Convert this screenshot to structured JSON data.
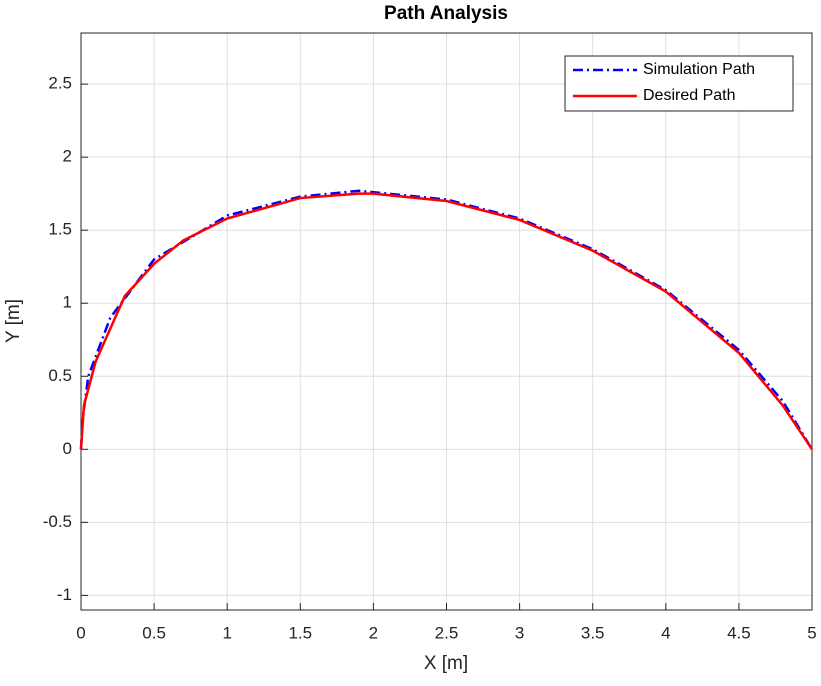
{
  "chart_data": {
    "type": "line",
    "title": "Path Analysis",
    "xlabel": "X [m]",
    "ylabel": "Y [m]",
    "xlim": [
      0,
      5
    ],
    "ylim": [
      -1.1,
      2.85
    ],
    "xticks": [
      0,
      0.5,
      1,
      1.5,
      2,
      2.5,
      3,
      3.5,
      4,
      4.5,
      5
    ],
    "yticks": [
      -1,
      -0.5,
      0,
      0.5,
      1,
      1.5,
      2,
      2.5
    ],
    "grid": true,
    "legend": "northeast",
    "series": [
      {
        "name": "Simulation Path",
        "color": "#0000ff",
        "style": "dashdot",
        "x": [
          0,
          0.01,
          0.05,
          0.2,
          0.5,
          1,
          1.5,
          1.9,
          2.5,
          3,
          3.5,
          4,
          4.5,
          4.8,
          5
        ],
        "values": [
          0,
          0.2,
          0.5,
          0.9,
          1.3,
          1.6,
          1.73,
          1.77,
          1.71,
          1.58,
          1.37,
          1.09,
          0.68,
          0.33,
          0
        ]
      },
      {
        "name": "Desired Path",
        "color": "#ff0000",
        "style": "solid",
        "x": [
          0,
          0.02,
          0.1,
          0.3,
          0.5,
          0.7,
          1,
          1.5,
          1.9,
          2,
          2.5,
          3,
          3.5,
          4,
          4.5,
          4.8,
          5
        ],
        "values": [
          0,
          0.3,
          0.6,
          1.05,
          1.27,
          1.43,
          1.58,
          1.72,
          1.75,
          1.75,
          1.7,
          1.57,
          1.36,
          1.08,
          0.66,
          0.3,
          0
        ]
      }
    ]
  }
}
